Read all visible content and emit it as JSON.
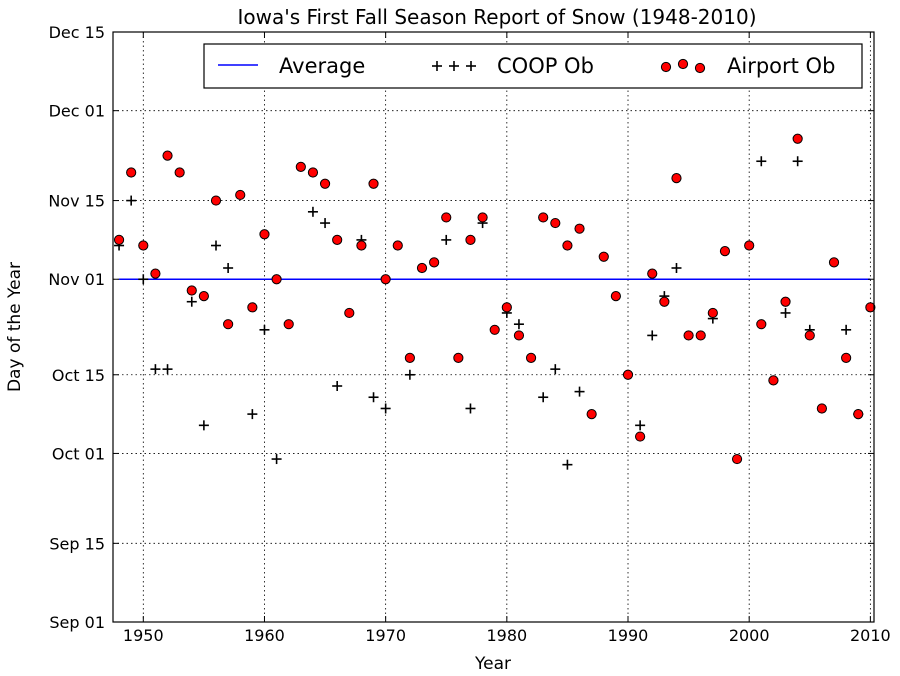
{
  "chart_data": {
    "type": "scatter",
    "title": "Iowa's First Fall Season Report of Snow (1948-2010)",
    "xlabel": "Year",
    "ylabel": "Day of the Year",
    "xlim": [
      1947.5,
      2010.3
    ],
    "ylim": [
      "Sep 01",
      "Dec 15"
    ],
    "x_ticks": [
      1950,
      1960,
      1970,
      1980,
      1990,
      2000,
      2010
    ],
    "y_ticks": [
      {
        "label": "Sep 01",
        "date": "09-01"
      },
      {
        "label": "Sep 15",
        "date": "09-15"
      },
      {
        "label": "Oct 01",
        "date": "10-01"
      },
      {
        "label": "Oct 15",
        "date": "10-15"
      },
      {
        "label": "Nov 01",
        "date": "11-01"
      },
      {
        "label": "Nov 15",
        "date": "11-15"
      },
      {
        "label": "Dec 01",
        "date": "12-01"
      },
      {
        "label": "Dec 15",
        "date": "12-15"
      }
    ],
    "grid": true,
    "legend_position": "top-right",
    "legend": [
      "Average",
      "COOP Ob",
      "Airport Ob"
    ],
    "colors": {
      "average": "#0000ff",
      "coop": "#000000",
      "airport_fill": "#ff0000",
      "airport_edge": "#000000"
    },
    "series": [
      {
        "name": "Average",
        "kind": "line",
        "x": [
          1948,
          2010
        ],
        "y": [
          "11-01",
          "11-01"
        ]
      },
      {
        "name": "COOP Ob",
        "kind": "marker-plus",
        "x": [
          1948,
          1949,
          1950,
          1951,
          1952,
          1954,
          1955,
          1956,
          1957,
          1959,
          1960,
          1961,
          1964,
          1965,
          1966,
          1968,
          1969,
          1970,
          1972,
          1975,
          1977,
          1978,
          1980,
          1981,
          1983,
          1984,
          1985,
          1986,
          1991,
          1992,
          1993,
          1994,
          1997,
          2001,
          2003,
          2004,
          2005,
          2008,
          2009
        ],
        "y": [
          "11-07",
          "11-15",
          "11-01",
          "10-16",
          "10-16",
          "10-28",
          "10-06",
          "11-07",
          "11-03",
          "10-08",
          "10-23",
          "09-30",
          "11-13",
          "11-11",
          "10-13",
          "11-08",
          "10-11",
          "10-09",
          "10-15",
          "11-08",
          "10-09",
          "11-11",
          "10-26",
          "10-24",
          "10-11",
          "10-16",
          "09-29",
          "10-12",
          "10-06",
          "10-22",
          "10-29",
          "11-03",
          "10-25",
          "11-22",
          "10-26",
          "11-22",
          "10-23",
          "10-23",
          "10-08"
        ]
      },
      {
        "name": "Airport Ob",
        "kind": "marker-circle",
        "x": [
          1948,
          1949,
          1950,
          1951,
          1952,
          1953,
          1954,
          1955,
          1956,
          1957,
          1958,
          1959,
          1960,
          1961,
          1962,
          1963,
          1964,
          1965,
          1966,
          1967,
          1968,
          1969,
          1970,
          1971,
          1972,
          1973,
          1974,
          1975,
          1976,
          1977,
          1978,
          1979,
          1980,
          1981,
          1982,
          1983,
          1984,
          1985,
          1986,
          1987,
          1988,
          1989,
          1990,
          1991,
          1992,
          1993,
          1994,
          1995,
          1996,
          1997,
          1998,
          1999,
          2000,
          2001,
          2002,
          2003,
          2004,
          2005,
          2006,
          2007,
          2008,
          2009,
          2010
        ],
        "y": [
          "11-08",
          "11-20",
          "11-07",
          "11-02",
          "11-23",
          "11-20",
          "10-30",
          "10-29",
          "11-15",
          "10-24",
          "11-16",
          "10-27",
          "11-09",
          "11-01",
          "10-24",
          "11-21",
          "11-20",
          "11-18",
          "11-08",
          "10-26",
          "11-07",
          "11-18",
          "11-01",
          "11-07",
          "10-18",
          "11-03",
          "11-04",
          "11-12",
          "10-18",
          "11-08",
          "11-12",
          "10-23",
          "10-27",
          "10-22",
          "10-18",
          "11-12",
          "11-11",
          "11-07",
          "11-10",
          "10-08",
          "11-05",
          "10-29",
          "10-15",
          "10-04",
          "11-02",
          "10-28",
          "11-19",
          "10-22",
          "10-22",
          "10-26",
          "11-06",
          "09-30",
          "11-07",
          "10-24",
          "10-14",
          "10-28",
          "11-26",
          "10-22",
          "10-09",
          "11-04",
          "10-18",
          "10-08",
          "10-27"
        ]
      }
    ]
  }
}
